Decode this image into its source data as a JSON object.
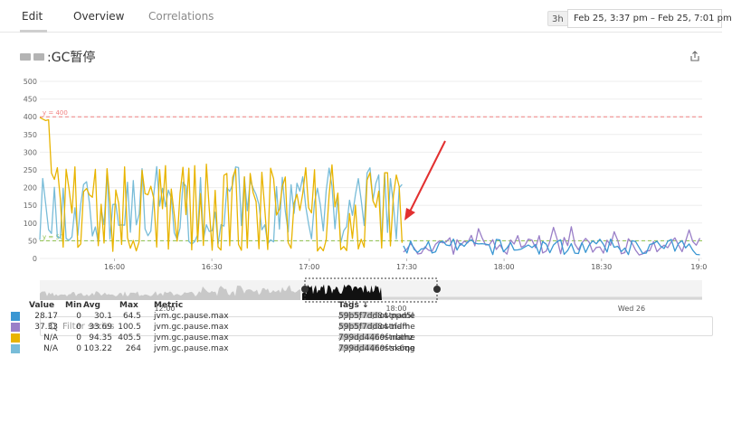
{
  "tabs": {
    "edit": "Edit",
    "overview": "Overview",
    "correlations": "Correlations"
  },
  "time_range": {
    "badge": "3h",
    "value": "Feb 25, 3:37 pm – Feb 25, 7:01 pm"
  },
  "widget": {
    "title_suffix": ":GC暂停"
  },
  "filter": {
    "placeholder": "Filter series"
  },
  "legend": {
    "headers": {
      "value": "Value",
      "min": "Min",
      "avg": "Avg",
      "max": "Max",
      "metric": "Metric",
      "tags": "Tags ↓"
    },
    "rows": [
      {
        "color": "#3b97d3",
        "value": "28.17",
        "min": "0",
        "avg": "30.1",
        "max": "64.5",
        "metric": "jvm.gc.pause.max",
        "tags_a": "app:",
        "tags_b": ",env:prd,hostname",
        "tags_c": "59b5f7dd84-ppd5l"
      },
      {
        "color": "#9a7fc8",
        "value": "37.33",
        "min": "0",
        "avg": "33.69",
        "max": "100.5",
        "metric": "jvm.gc.pause.max",
        "tags_a": "app:",
        "tags_b": ",env:prd,hostname",
        "tags_c": "59b5f7dd84-tfdfh"
      },
      {
        "color": "#e8b400",
        "value": "N/A",
        "min": "0",
        "avg": "94.35",
        "max": "405.5",
        "metric": "jvm.gc.pause.max",
        "tags_a": "app:",
        "tags_b": ",env:prd,hostname",
        "tags_c": "799dd4469f-nbthz"
      },
      {
        "color": "#78bcd8",
        "value": "N/A",
        "min": "0",
        "avg": "103.22",
        "max": "264",
        "metric": "jvm.gc.pause.max",
        "tags_a": "app:",
        "tags_b": ",env:prd,hostname",
        "tags_c": "799dd4469f-sk6qg"
      }
    ]
  },
  "chart_data": {
    "type": "line",
    "ylim": [
      0,
      500
    ],
    "y_ticks": [
      0,
      50,
      100,
      150,
      200,
      250,
      300,
      350,
      400,
      450,
      500
    ],
    "x_time_range": [
      "15:37",
      "19:01"
    ],
    "x_ticks": [
      "16:00",
      "16:30",
      "17:00",
      "17:30",
      "18:00",
      "18:30",
      "19:0"
    ],
    "markers": [
      {
        "label": "y = 400",
        "value": 400,
        "color": "#f08080"
      },
      {
        "label": "y = 50",
        "value": 50,
        "color": "#8cbf4a"
      }
    ],
    "series_colors": {
      "old_yellow": "#e8b400",
      "old_lightblue": "#78bcd8",
      "new_blue": "#3b97d3",
      "new_purple": "#9a7fc8"
    },
    "old_pods_end": "17:30",
    "new_pods_range_approx": [
      0,
      100
    ],
    "navigator": {
      "ticks": [
        "12:00",
        "18:00",
        "Wed 26"
      ]
    }
  },
  "colors": {
    "annotation_arrow": "#e23030",
    "grid": "#eeeeee"
  }
}
